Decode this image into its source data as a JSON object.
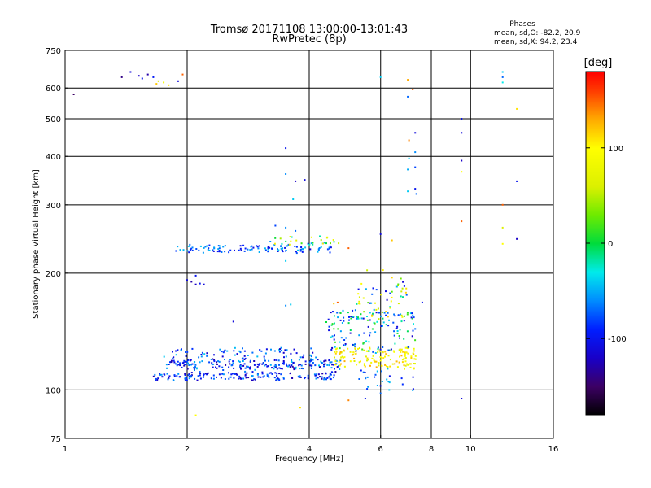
{
  "title": {
    "line1": "Tromsø 20171108 13:00:00-13:01:43",
    "line2": "RwPretec (8p)"
  },
  "stats": {
    "heading": "Phases",
    "line_o": "mean, sd,O: -82.2, 20.9",
    "line_x": "mean, sd,X: 94.2, 23.4"
  },
  "colorbar": {
    "unit": "[deg]",
    "min": -180,
    "max": 180,
    "ticks": [
      {
        "value": 100,
        "label": "100"
      },
      {
        "value": 0,
        "label": "0"
      },
      {
        "value": -100,
        "label": "-100"
      }
    ]
  },
  "chart_data": {
    "type": "scatter",
    "xlabel": "Frequency [MHz]",
    "ylabel": "Stationary phase Virtual Height [km]",
    "xscale": "log",
    "yscale": "log",
    "xlim": [
      1,
      16
    ],
    "ylim": [
      75,
      750
    ],
    "grid": true,
    "xticks": [
      {
        "value": 1,
        "label": "1"
      },
      {
        "value": 2,
        "label": "2"
      },
      {
        "value": 4,
        "label": "4"
      },
      {
        "value": 6,
        "label": "6"
      },
      {
        "value": 8,
        "label": "8"
      },
      {
        "value": 10,
        "label": "10"
      },
      {
        "value": 16,
        "label": "16"
      }
    ],
    "xgrid": [
      2,
      4,
      6,
      8,
      10
    ],
    "yticks": [
      {
        "value": 75,
        "label": "75"
      },
      {
        "value": 100,
        "label": "100"
      },
      {
        "value": 200,
        "label": "200"
      },
      {
        "value": 300,
        "label": "300"
      },
      {
        "value": 400,
        "label": "400"
      },
      {
        "value": 500,
        "label": "500"
      },
      {
        "value": 600,
        "label": "600"
      },
      {
        "value": 750,
        "label": "750"
      }
    ],
    "ygrid": [
      100,
      200,
      300,
      400,
      500,
      600
    ],
    "series": [
      {
        "points": [
          {
            "x": 1.45,
            "y": 660,
            "phase": -110
          },
          {
            "x": 1.52,
            "y": 645,
            "phase": -120
          },
          {
            "x": 1.55,
            "y": 635,
            "phase": -100
          },
          {
            "x": 1.6,
            "y": 650,
            "phase": -130
          },
          {
            "x": 1.65,
            "y": 640,
            "phase": -95
          },
          {
            "x": 1.7,
            "y": 625,
            "phase": 60
          },
          {
            "x": 1.75,
            "y": 620,
            "phase": 90
          },
          {
            "x": 1.8,
            "y": 610,
            "phase": 110
          },
          {
            "x": 1.68,
            "y": 615,
            "phase": 120
          },
          {
            "x": 1.9,
            "y": 625,
            "phase": -110
          },
          {
            "x": 1.95,
            "y": 650,
            "phase": 150
          },
          {
            "x": 1.38,
            "y": 640,
            "phase": -140
          },
          {
            "x": 1.05,
            "y": 578,
            "phase": -150
          },
          {
            "x": 3.5,
            "y": 420,
            "phase": -100
          },
          {
            "x": 3.5,
            "y": 360,
            "phase": -60
          },
          {
            "x": 3.7,
            "y": 345,
            "phase": -120
          },
          {
            "x": 3.65,
            "y": 310,
            "phase": -40
          },
          {
            "x": 3.9,
            "y": 348,
            "phase": -110
          },
          {
            "x": 6.0,
            "y": 640,
            "phase": -40
          },
          {
            "x": 7.0,
            "y": 630,
            "phase": 130
          },
          {
            "x": 7.2,
            "y": 595,
            "phase": 150
          },
          {
            "x": 7.0,
            "y": 570,
            "phase": -70
          },
          {
            "x": 7.3,
            "y": 460,
            "phase": -110
          },
          {
            "x": 7.05,
            "y": 440,
            "phase": 140
          },
          {
            "x": 7.3,
            "y": 410,
            "phase": -60
          },
          {
            "x": 7.05,
            "y": 395,
            "phase": -40
          },
          {
            "x": 7.3,
            "y": 375,
            "phase": -80
          },
          {
            "x": 7.0,
            "y": 370,
            "phase": -50
          },
          {
            "x": 7.3,
            "y": 330,
            "phase": -100
          },
          {
            "x": 7.0,
            "y": 325,
            "phase": -40
          },
          {
            "x": 7.35,
            "y": 320,
            "phase": -70
          },
          {
            "x": 9.5,
            "y": 500,
            "phase": -100
          },
          {
            "x": 9.5,
            "y": 460,
            "phase": -110
          },
          {
            "x": 9.5,
            "y": 390,
            "phase": -120
          },
          {
            "x": 9.5,
            "y": 365,
            "phase": 100
          },
          {
            "x": 9.5,
            "y": 272,
            "phase": 150
          },
          {
            "x": 12.0,
            "y": 660,
            "phase": -40
          },
          {
            "x": 12.0,
            "y": 640,
            "phase": -70
          },
          {
            "x": 12.0,
            "y": 620,
            "phase": -30
          },
          {
            "x": 12.0,
            "y": 300,
            "phase": 150
          },
          {
            "x": 12.0,
            "y": 262,
            "phase": 60
          },
          {
            "x": 12.0,
            "y": 238,
            "phase": 100
          },
          {
            "x": 13.0,
            "y": 530,
            "phase": 110
          },
          {
            "x": 13.0,
            "y": 345,
            "phase": -100
          },
          {
            "x": 13.0,
            "y": 245,
            "phase": -120
          },
          {
            "x": 3.3,
            "y": 265,
            "phase": -80
          },
          {
            "x": 3.5,
            "y": 262,
            "phase": -60
          },
          {
            "x": 3.7,
            "y": 257,
            "phase": -70
          },
          {
            "x": 5.0,
            "y": 232,
            "phase": 150
          },
          {
            "x": 6.0,
            "y": 252,
            "phase": -110
          },
          {
            "x": 6.4,
            "y": 243,
            "phase": 120
          },
          {
            "x": 3.5,
            "y": 215,
            "phase": -40
          },
          {
            "x": 2.0,
            "y": 192,
            "phase": -110
          },
          {
            "x": 2.05,
            "y": 190,
            "phase": -130
          },
          {
            "x": 2.1,
            "y": 187,
            "phase": -120
          },
          {
            "x": 2.15,
            "y": 188,
            "phase": -100
          },
          {
            "x": 2.2,
            "y": 187,
            "phase": -110
          },
          {
            "x": 2.1,
            "y": 197,
            "phase": -100
          },
          {
            "x": 2.6,
            "y": 150,
            "phase": -110
          },
          {
            "x": 3.5,
            "y": 165,
            "phase": -60
          },
          {
            "x": 3.6,
            "y": 166,
            "phase": -40
          },
          {
            "x": 4.6,
            "y": 167,
            "phase": 120
          },
          {
            "x": 4.7,
            "y": 168,
            "phase": 150
          },
          {
            "x": 5.3,
            "y": 167,
            "phase": 90
          },
          {
            "x": 7.6,
            "y": 168,
            "phase": -100
          },
          {
            "x": 3.8,
            "y": 90,
            "phase": 110
          },
          {
            "x": 2.1,
            "y": 86,
            "phase": 100
          },
          {
            "x": 5.0,
            "y": 94,
            "phase": 140
          },
          {
            "x": 5.5,
            "y": 95,
            "phase": -100
          },
          {
            "x": 6.0,
            "y": 98,
            "phase": -70
          },
          {
            "x": 6.3,
            "y": 100,
            "phase": -40
          },
          {
            "x": 9.5,
            "y": 95,
            "phase": -110
          }
        ]
      }
    ],
    "clusters": [
      {
        "x": [
          1.85,
          4.6
        ],
        "y": [
          226,
          236
        ],
        "n": 110,
        "phase": [
          -110,
          -40
        ],
        "spread": 0.012
      },
      {
        "x": [
          3.2,
          4.8
        ],
        "y": [
          237,
          249
        ],
        "n": 30,
        "phase": [
          -80,
          110
        ],
        "spread": 0.012
      },
      {
        "x": [
          1.65,
          4.7
        ],
        "y": [
          106,
          111
        ],
        "n": 160,
        "phase": [
          -130,
          -50
        ],
        "spread": 0.012
      },
      {
        "x": [
          1.75,
          4.8
        ],
        "y": [
          113,
          120
        ],
        "n": 200,
        "phase": [
          -130,
          -40
        ],
        "spread": 0.013
      },
      {
        "x": [
          1.75,
          4.2
        ],
        "y": [
          121,
          128
        ],
        "n": 70,
        "phase": [
          -120,
          -40
        ],
        "spread": 0.012
      },
      {
        "x": [
          4.6,
          7.4
        ],
        "y": [
          113,
          128
        ],
        "n": 140,
        "phase": [
          60,
          130
        ],
        "spread": 0.03
      },
      {
        "x": [
          4.4,
          7.4
        ],
        "y": [
          125,
          160
        ],
        "n": 140,
        "phase": [
          -120,
          20
        ],
        "spread": 0.04
      },
      {
        "x": [
          5.2,
          7.0
        ],
        "y": [
          150,
          200
        ],
        "n": 60,
        "phase": [
          -120,
          120
        ],
        "spread": 0.05
      },
      {
        "x": [
          5.2,
          7.4
        ],
        "y": [
          100,
          113
        ],
        "n": 25,
        "phase": [
          -120,
          -40
        ],
        "spread": 0.02
      }
    ]
  }
}
